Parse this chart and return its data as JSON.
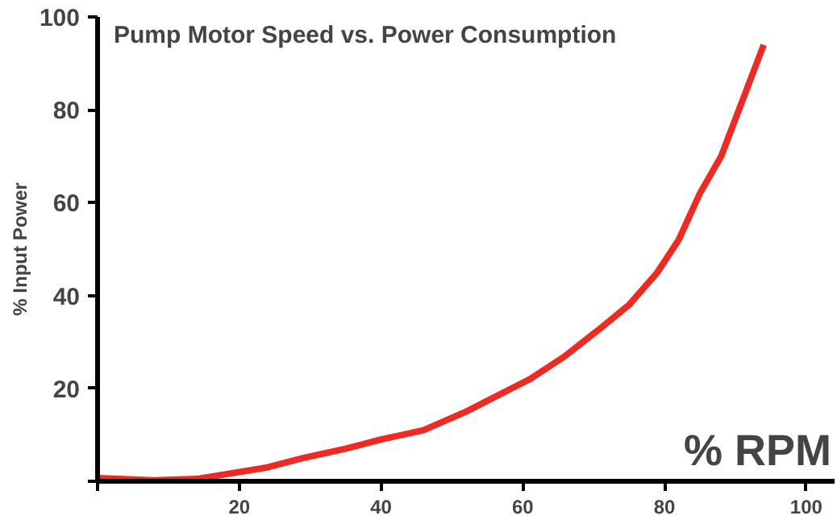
{
  "chart_data": {
    "type": "line",
    "title": "Pump Motor Speed vs. Power Consumption",
    "xlabel": "% RPM",
    "ylabel": "% Input Power",
    "x": [
      0,
      8,
      14,
      18,
      24,
      29,
      35,
      40,
      46,
      52,
      61,
      66,
      71,
      75,
      79,
      82,
      85,
      88,
      90,
      92,
      94
    ],
    "series": [
      {
        "color": "#ee2a24",
        "values": [
          0.7,
          0.2,
          0.5,
          1.5,
          3,
          5,
          7,
          9,
          11,
          15,
          22,
          27,
          33,
          38,
          45,
          52,
          62,
          70,
          78,
          86,
          94
        ]
      }
    ],
    "xlim": [
      0,
      104
    ],
    "ylim": [
      0,
      100
    ],
    "xticks": [
      {
        "value": 0,
        "label": null
      },
      20,
      40,
      60,
      80,
      100
    ],
    "yticks": [
      {
        "value": 0,
        "label": null
      },
      20,
      40,
      60,
      80,
      100
    ],
    "grid": false,
    "marker": "none",
    "line_style": "solid"
  }
}
